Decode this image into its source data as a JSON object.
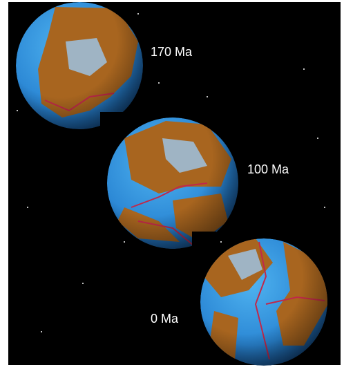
{
  "labels": [
    "170 Ma",
    "100 Ma",
    "0 Ma"
  ]
}
